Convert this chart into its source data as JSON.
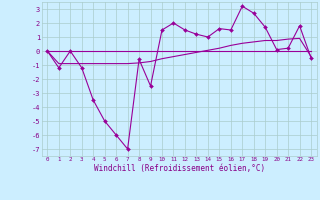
{
  "x": [
    0,
    1,
    2,
    3,
    4,
    5,
    6,
    7,
    8,
    9,
    10,
    11,
    12,
    13,
    14,
    15,
    16,
    17,
    18,
    19,
    20,
    21,
    22,
    23
  ],
  "line1_y": [
    0.0,
    -1.2,
    0.0,
    -1.2,
    -3.5,
    -5.0,
    -6.0,
    -7.0,
    -0.6,
    -2.5,
    1.5,
    2.0,
    1.5,
    1.2,
    1.0,
    1.6,
    1.5,
    3.2,
    2.7,
    1.7,
    0.1,
    0.2,
    1.8,
    -0.5
  ],
  "line2_y": [
    0.0,
    0.0,
    0.0,
    0.0,
    0.0,
    0.0,
    0.0,
    0.0,
    0.0,
    0.0,
    0.0,
    0.0,
    0.0,
    0.0,
    0.0,
    0.0,
    0.0,
    0.0,
    0.0,
    0.0,
    0.0,
    0.0,
    0.0,
    0.0
  ],
  "line3_y": [
    0.0,
    -0.9,
    -0.9,
    -0.9,
    -0.9,
    -0.9,
    -0.9,
    -0.9,
    -0.85,
    -0.75,
    -0.55,
    -0.4,
    -0.25,
    -0.1,
    0.05,
    0.2,
    0.4,
    0.55,
    0.65,
    0.75,
    0.75,
    0.85,
    0.9,
    -0.4
  ],
  "line_color": "#990099",
  "bg_color": "#cceeff",
  "grid_color": "#aacccc",
  "xlabel": "Windchill (Refroidissement éolien,°C)",
  "ylim": [
    -7.5,
    3.5
  ],
  "xlim": [
    -0.5,
    23.5
  ],
  "yticks": [
    -7,
    -6,
    -5,
    -4,
    -3,
    -2,
    -1,
    0,
    1,
    2,
    3
  ],
  "xticks": [
    0,
    1,
    2,
    3,
    4,
    5,
    6,
    7,
    8,
    9,
    10,
    11,
    12,
    13,
    14,
    15,
    16,
    17,
    18,
    19,
    20,
    21,
    22,
    23
  ],
  "font_color": "#880088",
  "marker": "D",
  "markersize": 2.0,
  "linewidth": 0.8
}
